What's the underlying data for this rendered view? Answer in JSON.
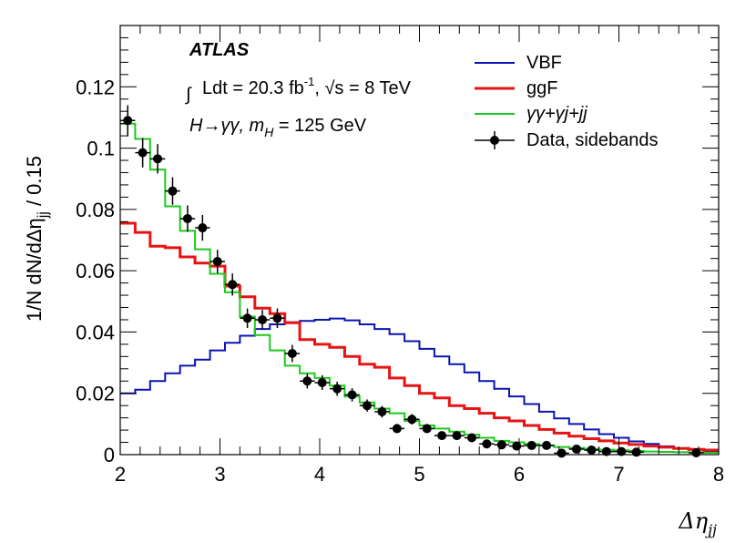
{
  "chart_data": {
    "type": "histogram",
    "title": "",
    "experiment": "ATLAS",
    "annotations": {
      "lumi": "Ldt = 20.3 fb",
      "lumi_exp": "-1",
      "energy": ", √s = 8 TeV",
      "process": "H→γγ, m",
      "process_sub": "H",
      "process_tail": " = 125 GeV"
    },
    "xlabel": "Δη",
    "xlabel_sub": "jj",
    "ylabel": "1/N dN/dΔη",
    "ylabel_sub": "jj",
    "ylabel_tail": " / 0.15",
    "xlim": [
      2,
      8
    ],
    "ylim": [
      0,
      0.14
    ],
    "xticks": [
      2,
      3,
      4,
      5,
      6,
      7,
      8
    ],
    "xtick_labels": [
      "2",
      "3",
      "4",
      "5",
      "6",
      "7",
      "8"
    ],
    "yticks": [
      0,
      0.02,
      0.04,
      0.06,
      0.08,
      0.1,
      0.12
    ],
    "ytick_labels": [
      "0",
      "0.02",
      "0.04",
      "0.06",
      "0.08",
      "0.1",
      "0.12"
    ],
    "bin_start": 2.0,
    "bin_width": 0.15,
    "series": [
      {
        "name": "VBF",
        "color": "#0a14b4",
        "style": "step",
        "values": [
          0.02,
          0.0212,
          0.024,
          0.0265,
          0.029,
          0.031,
          0.034,
          0.0365,
          0.0388,
          0.041,
          0.0425,
          0.0432,
          0.0436,
          0.044,
          0.0444,
          0.0438,
          0.0425,
          0.041,
          0.0393,
          0.037,
          0.0345,
          0.032,
          0.0295,
          0.0268,
          0.024,
          0.0215,
          0.019,
          0.0165,
          0.014,
          0.0118,
          0.01,
          0.0082,
          0.0067,
          0.0055,
          0.0043,
          0.0035,
          0.0027,
          0.0021,
          0.0016,
          0.0012
        ]
      },
      {
        "name": "ggF",
        "color": "#e61414",
        "style": "step",
        "values": [
          0.0755,
          0.0725,
          0.068,
          0.0675,
          0.0645,
          0.0625,
          0.0615,
          0.055,
          0.0515,
          0.0478,
          0.046,
          0.043,
          0.0375,
          0.036,
          0.035,
          0.032,
          0.0295,
          0.0285,
          0.025,
          0.0225,
          0.02,
          0.0185,
          0.016,
          0.015,
          0.0135,
          0.012,
          0.011,
          0.0095,
          0.0082,
          0.007,
          0.006,
          0.0052,
          0.0045,
          0.0038,
          0.0033,
          0.0028,
          0.0024,
          0.002,
          0.0017,
          0.0015
        ]
      },
      {
        "name": "γγ+γj+jj",
        "color": "#1ec81e",
        "style": "step",
        "values": [
          0.108,
          0.103,
          0.093,
          0.081,
          0.073,
          0.067,
          0.059,
          0.053,
          0.045,
          0.039,
          0.034,
          0.029,
          0.0265,
          0.025,
          0.0225,
          0.019,
          0.017,
          0.015,
          0.0135,
          0.011,
          0.0095,
          0.0085,
          0.0075,
          0.0065,
          0.0055,
          0.0045,
          0.004,
          0.0035,
          0.003,
          0.0025,
          0.0022,
          0.0019,
          0.0016,
          0.0014,
          0.0012,
          0.001,
          0.0009,
          0.0008,
          0.0007,
          0.0006
        ]
      }
    ],
    "data_series": {
      "name": "Data, sidebands",
      "color": "#000000",
      "points": [
        {
          "x": 2.075,
          "y": 0.109,
          "err": 0.005
        },
        {
          "x": 2.225,
          "y": 0.0985,
          "err": 0.0048
        },
        {
          "x": 2.375,
          "y": 0.0965,
          "err": 0.0048
        },
        {
          "x": 2.525,
          "y": 0.086,
          "err": 0.0045
        },
        {
          "x": 2.675,
          "y": 0.077,
          "err": 0.0043
        },
        {
          "x": 2.825,
          "y": 0.074,
          "err": 0.0042
        },
        {
          "x": 2.975,
          "y": 0.063,
          "err": 0.0038
        },
        {
          "x": 3.125,
          "y": 0.0555,
          "err": 0.0036
        },
        {
          "x": 3.275,
          "y": 0.0445,
          "err": 0.0032
        },
        {
          "x": 3.425,
          "y": 0.044,
          "err": 0.0032
        },
        {
          "x": 3.575,
          "y": 0.0445,
          "err": 0.0032
        },
        {
          "x": 3.725,
          "y": 0.033,
          "err": 0.0028
        },
        {
          "x": 3.875,
          "y": 0.024,
          "err": 0.0024
        },
        {
          "x": 4.025,
          "y": 0.0235,
          "err": 0.0024
        },
        {
          "x": 4.175,
          "y": 0.0215,
          "err": 0.0023
        },
        {
          "x": 4.325,
          "y": 0.0195,
          "err": 0.0022
        },
        {
          "x": 4.475,
          "y": 0.016,
          "err": 0.002
        },
        {
          "x": 4.625,
          "y": 0.014,
          "err": 0.0019
        },
        {
          "x": 4.775,
          "y": 0.0085,
          "err": 0.0015
        },
        {
          "x": 4.925,
          "y": 0.0115,
          "err": 0.0017
        },
        {
          "x": 5.075,
          "y": 0.0085,
          "err": 0.0015
        },
        {
          "x": 5.225,
          "y": 0.0062,
          "err": 0.0013
        },
        {
          "x": 5.375,
          "y": 0.0062,
          "err": 0.0013
        },
        {
          "x": 5.525,
          "y": 0.0055,
          "err": 0.0012
        },
        {
          "x": 5.675,
          "y": 0.0035,
          "err": 0.001
        },
        {
          "x": 5.825,
          "y": 0.0032,
          "err": 0.0009
        },
        {
          "x": 5.975,
          "y": 0.0028,
          "err": 0.0009
        },
        {
          "x": 6.125,
          "y": 0.003,
          "err": 0.0009
        },
        {
          "x": 6.275,
          "y": 0.003,
          "err": 0.0009
        },
        {
          "x": 6.425,
          "y": 0.0005,
          "err": 0.0004
        },
        {
          "x": 6.575,
          "y": 0.0018,
          "err": 0.0007
        },
        {
          "x": 6.725,
          "y": 0.0015,
          "err": 0.0006
        },
        {
          "x": 6.875,
          "y": 0.001,
          "err": 0.0005
        },
        {
          "x": 7.025,
          "y": 0.001,
          "err": 0.0005
        },
        {
          "x": 7.175,
          "y": 0.0008,
          "err": 0.0005
        },
        {
          "x": 7.775,
          "y": 0.0006,
          "err": 0.0004
        }
      ]
    },
    "legend": {
      "position": "top-right",
      "entries": [
        "VBF",
        "ggF",
        "γγ+γj+jj",
        "Data, sidebands"
      ]
    }
  }
}
